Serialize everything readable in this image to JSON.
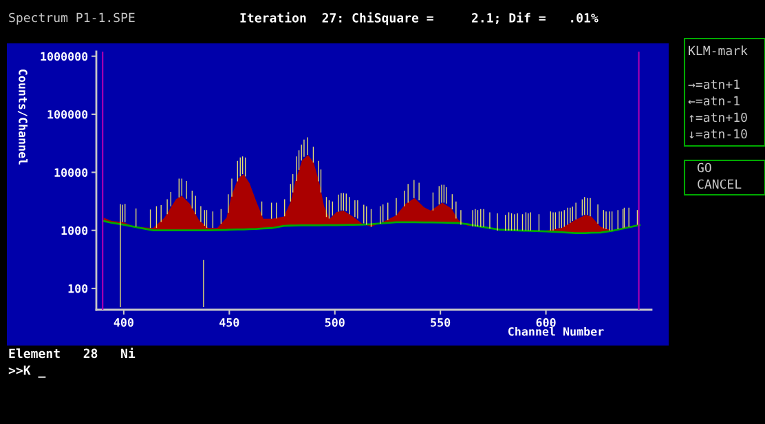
{
  "chart_data": {
    "type": "area",
    "title": "Spectrum P1-1.SPE",
    "subtitle": "Iteration  27: ChiSquare =     2.1; Dif =   .01%",
    "xlabel": "Channel Number",
    "ylabel": "Counts/Channel",
    "log": "y",
    "xlim": [
      387,
      650
    ],
    "xticks": [
      400,
      450,
      500,
      550,
      600
    ],
    "ylim": [
      43,
      1200000
    ],
    "yticks": [
      100,
      1000,
      10000,
      100000,
      1000000
    ],
    "ref_lines": [
      {
        "axis": "x",
        "value": 390,
        "label": null,
        "color": "#b000b0"
      },
      {
        "axis": "x",
        "value": 644,
        "label": null,
        "color": "#b000b0"
      }
    ],
    "series": [
      {
        "color": "#aa0000",
        "x": [
          390.5,
          394.3,
          399.8,
          405.2,
          413.9,
          419.3,
          424.8,
          427.5,
          431.3,
          435.6,
          440,
          444.3,
          448.7,
          450.9,
          454.1,
          456.8,
          459.6,
          462.8,
          466.1,
          470.4,
          475.9,
          479.1,
          481.3,
          484.5,
          487.3,
          490,
          492.7,
          494.9,
          497.6,
          500.8,
          504.1,
          508.5,
          512.8,
          517.2,
          522.6,
          529.1,
          533.5,
          537.8,
          542.2,
          545.4,
          550.9,
          555.2,
          558.5,
          562.8,
          568.2,
          578,
          588.9,
          599.8,
          607.4,
          613.9,
          618.8,
          621.5,
          625.9,
          631.3,
          637.8,
          644.3
        ],
        "values": [
          1660,
          1450,
          1390,
          1160,
          1100,
          1660,
          3450,
          3950,
          2880,
          1520,
          1100,
          1100,
          1660,
          3800,
          7800,
          9300,
          6500,
          3150,
          1590,
          1590,
          1740,
          3150,
          7100,
          16200,
          20000,
          14700,
          6500,
          2620,
          1590,
          2080,
          2190,
          1740,
          1320,
          1150,
          1390,
          1820,
          2880,
          3600,
          2510,
          2190,
          3000,
          2400,
          1520,
          1210,
          1150,
          1050,
          1010,
          990,
          1100,
          1520,
          1850,
          1740,
          1150,
          1000,
          1150,
          1260
        ]
      },
      {
        "type": "line",
        "color": "#00aa00",
        "x": [
          390.5,
          394.3,
          399.8,
          405.2,
          413.9,
          419.3,
          424.8,
          427.5,
          431.3,
          435.6,
          440,
          444.3,
          448.7,
          450.9,
          454.1,
          456.8,
          459.6,
          462.8,
          466.1,
          470.4,
          475.9,
          479.1,
          481.3,
          484.5,
          487.3,
          490,
          492.7,
          494.9,
          497.6,
          500.8,
          504.1,
          508.5,
          512.8,
          517.2,
          522.6,
          529.1,
          533.5,
          537.8,
          542.2,
          545.4,
          550.9,
          555.2,
          558.5,
          562.8,
          568.2,
          578,
          588.9,
          599.8,
          607.4,
          613.9,
          618.8,
          621.5,
          625.9,
          631.3,
          637.8,
          644.3
        ],
        "values": [
          1450,
          1350,
          1260,
          1150,
          1000,
          1000,
          1000,
          1000,
          1000,
          1000,
          1000,
          1010,
          1020,
          1030,
          1040,
          1040,
          1050,
          1060,
          1080,
          1100,
          1200,
          1210,
          1215,
          1220,
          1220,
          1225,
          1225,
          1230,
          1230,
          1230,
          1240,
          1250,
          1260,
          1280,
          1330,
          1380,
          1380,
          1380,
          1370,
          1370,
          1360,
          1350,
          1340,
          1280,
          1170,
          1030,
          990,
          960,
          930,
          900,
          900,
          910,
          920,
          980,
          1100,
          1240
        ]
      },
      {
        "type": "bar",
        "color": "#e8e070",
        "x": [
          398.4,
          399.4,
          400.6,
          405.8,
          412.6,
          415.5,
          417.7,
          420.6,
          422.3,
          426.2,
          427.5,
          429.7,
          432.4,
          434.0,
          436.5,
          437.8,
          438.3,
          439.3,
          442.2,
          446.1,
          449.5,
          451.2,
          453.9,
          455.2,
          456.3,
          457.6,
          465.4,
          470.0,
          472.3,
          476.2,
          479.0,
          480.1,
          481.9,
          483.0,
          484.2,
          485.4,
          487.0,
          489.8,
          492.2,
          493.4,
          496.0,
          497.3,
          498.9,
          501.7,
          503.0,
          504.1,
          505.4,
          506.9,
          509.5,
          510.8,
          513.7,
          515.0,
          517.2,
          521.5,
          522.8,
          525.1,
          529.1,
          532.9,
          534.7,
          537.5,
          539.9,
          546.5,
          549.4,
          550.6,
          551.7,
          552.8,
          555.6,
          557.4,
          559.7,
          565.3,
          566.5,
          567.7,
          569.1,
          570.5,
          573.4,
          577.0,
          580.8,
          582.4,
          583.7,
          585.1,
          586.5,
          588.9,
          590.5,
          591.6,
          592.7,
          596.7,
          602.2,
          603.4,
          604.5,
          606.3,
          607.4,
          608.7,
          610.3,
          611.5,
          612.6,
          614.2,
          617.2,
          618.3,
          619.6,
          621.0,
          624.6,
          627.3,
          628.5,
          630.2,
          631.3,
          634.1,
          636.5,
          637.1,
          639.3,
          643.3
        ],
        "base": [
          48,
          1390,
          1390,
          1160,
          1100,
          1100,
          1400,
          1900,
          2600,
          3700,
          3950,
          3500,
          2400,
          1900,
          1400,
          48,
          1200,
          1100,
          1100,
          1300,
          2000,
          3800,
          7000,
          8500,
          9300,
          8500,
          1800,
          1590,
          1600,
          1750,
          3150,
          4500,
          7100,
          11000,
          16000,
          18500,
          20000,
          14700,
          7000,
          4500,
          1700,
          1600,
          1800,
          2100,
          2200,
          2200,
          2150,
          1900,
          1700,
          1600,
          1320,
          1250,
          1150,
          1300,
          1400,
          1500,
          1820,
          2600,
          3000,
          3600,
          3300,
          2200,
          2800,
          3000,
          3000,
          2900,
          2300,
          1600,
          1250,
          1170,
          1170,
          1170,
          1150,
          1150,
          1080,
          990,
          990,
          1000,
          1000,
          1000,
          1000,
          1000,
          1000,
          1000,
          1000,
          990,
          1000,
          1000,
          1050,
          1100,
          1100,
          1150,
          1250,
          1350,
          1450,
          1550,
          1800,
          1850,
          1850,
          1750,
          1300,
          1080,
          1050,
          1000,
          1000,
          1050,
          1100,
          1120,
          1150,
          1250
        ],
        "values": [
          2800,
          1380,
          1460,
          1230,
          1190,
          1510,
          1330,
          1530,
          1990,
          4080,
          3830,
          3600,
          2440,
          2040,
          1210,
          262,
          1040,
          1140,
          1020,
          1030,
          2200,
          3980,
          8700,
          9500,
          9500,
          9500,
          1350,
          1410,
          1400,
          1680,
          3150,
          4800,
          11700,
          13000,
          14000,
          18300,
          20000,
          12900,
          8700,
          6700,
          2060,
          1700,
          1350,
          2040,
          2200,
          2200,
          2170,
          1860,
          1600,
          1700,
          1450,
          1350,
          1180,
          1310,
          1400,
          1500,
          1780,
          2240,
          3300,
          3800,
          3300,
          2300,
          3000,
          3100,
          3100,
          2650,
          1900,
          1550,
          990,
          1070,
          1160,
          1070,
          1180,
          1180,
          970,
          980,
          860,
          1050,
          970,
          900,
          970,
          900,
          1050,
          970,
          1050,
          910,
          1120,
          1050,
          1000,
          1020,
          1020,
          1090,
          1210,
          1110,
          1110,
          1450,
          1630,
          1910,
          1750,
          1850,
          1500,
          1160,
          1070,
          1120,
          1120,
          1190,
          1230,
          1340,
          1310,
          990
        ]
      }
    ],
    "annotations": [
      "KLM-mark",
      "→=atn+1",
      "←=atn-1",
      "↑=atn+10",
      "↓=atn-10",
      "GO",
      "CANCEL",
      "Element   28   Ni",
      ">>K _"
    ]
  }
}
